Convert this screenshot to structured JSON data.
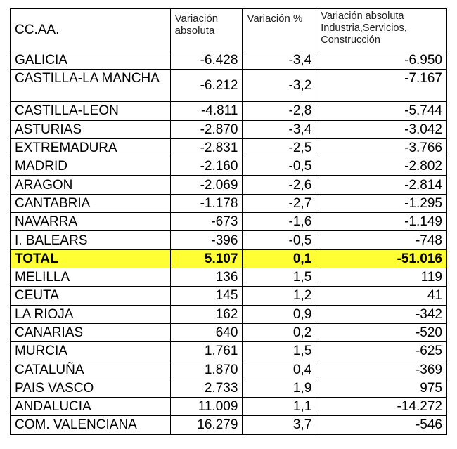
{
  "table": {
    "headers": {
      "region": "CC.AA.",
      "abs": "Variación absoluta",
      "pct": "Variación %",
      "ind_line1": "Variación absoluta",
      "ind_line2": "Industria,Servicios,",
      "ind_line3": "Construcción"
    },
    "rows": [
      {
        "region": "GALICIA",
        "abs": "-6.428",
        "pct": "-3,4",
        "ind": "-6.950"
      },
      {
        "region": "CASTILLA-LA MANCHA",
        "abs": "-6.212",
        "pct": "-3,2",
        "ind": "-7.167"
      },
      {
        "region": "CASTILLA-LEON",
        "abs": "-4.811",
        "pct": "-2,8",
        "ind": "-5.744"
      },
      {
        "region": "ASTURIAS",
        "abs": "-2.870",
        "pct": "-3,4",
        "ind": "-3.042"
      },
      {
        "region": "EXTREMADURA",
        "abs": "-2.831",
        "pct": "-2,5",
        "ind": "-3.766"
      },
      {
        "region": "MADRID",
        "abs": "-2.160",
        "pct": "-0,5",
        "ind": "-2.802"
      },
      {
        "region": "ARAGON",
        "abs": "-2.069",
        "pct": "-2,6",
        "ind": "-2.814"
      },
      {
        "region": "CANTABRIA",
        "abs": "-1.178",
        "pct": "-2,7",
        "ind": "-1.295"
      },
      {
        "region": "NAVARRA",
        "abs": "-673",
        "pct": "-1,6",
        "ind": "-1.149"
      },
      {
        "region": "I. BALEARS",
        "abs": "-396",
        "pct": "-0,5",
        "ind": "-748"
      },
      {
        "region": "TOTAL",
        "abs": "5.107",
        "pct": "0,1",
        "ind": "-51.016"
      },
      {
        "region": "MELILLA",
        "abs": "136",
        "pct": "1,5",
        "ind": "119"
      },
      {
        "region": "CEUTA",
        "abs": "145",
        "pct": "1,2",
        "ind": "41"
      },
      {
        "region": "LA RIOJA",
        "abs": "162",
        "pct": "0,9",
        "ind": "-342"
      },
      {
        "region": "CANARIAS",
        "abs": "640",
        "pct": "0,2",
        "ind": "-520"
      },
      {
        "region": "MURCIA",
        "abs": "1.761",
        "pct": "1,5",
        "ind": "-625"
      },
      {
        "region": "CATALUÑA",
        "abs": "1.870",
        "pct": "0,4",
        "ind": "-369"
      },
      {
        "region": "PAIS VASCO",
        "abs": "2.733",
        "pct": "1,9",
        "ind": "975"
      },
      {
        "region": "ANDALUCIA",
        "abs": "11.009",
        "pct": "1,1",
        "ind": "-14.272"
      },
      {
        "region": "COM. VALENCIANA",
        "abs": "16.279",
        "pct": "3,7",
        "ind": "-546"
      }
    ],
    "total_highlight_color": "#ffff33"
  }
}
